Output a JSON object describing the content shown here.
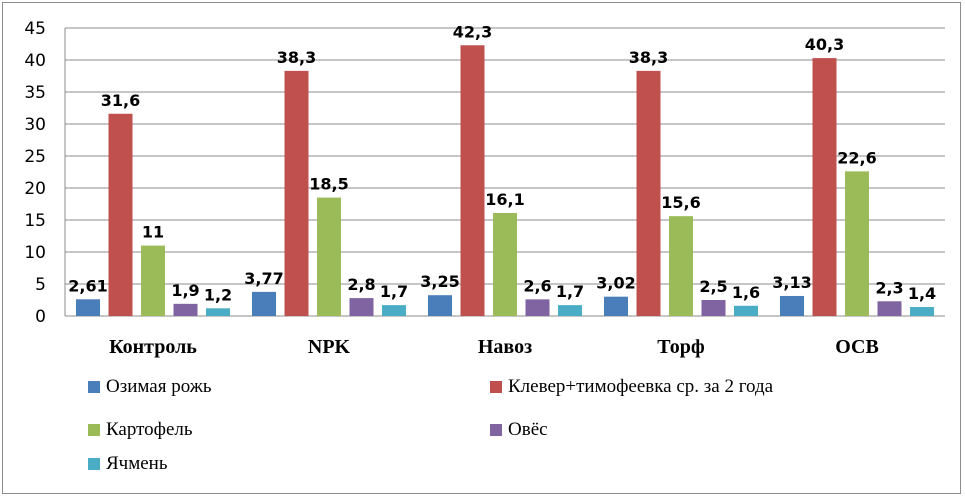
{
  "chart_data": {
    "type": "bar",
    "categories": [
      "Контроль",
      "NPK",
      "Навоз",
      "Торф",
      "ОСВ"
    ],
    "series": [
      {
        "name": "Озимая рожь",
        "color": "#4a7ebb",
        "values": [
          2.61,
          3.77,
          3.25,
          3.02,
          3.13
        ],
        "labels": [
          "2,61",
          "3,77",
          "3,25",
          "3,02",
          "3,13"
        ]
      },
      {
        "name": "Клевер+тимофеевка ср. за 2 года",
        "color": "#c0504d",
        "values": [
          31.6,
          38.3,
          42.3,
          38.3,
          40.3
        ],
        "labels": [
          "31,6",
          "38,3",
          "42,3",
          "38,3",
          "40,3"
        ]
      },
      {
        "name": "Картофель",
        "color": "#9bbb59",
        "values": [
          11,
          18.5,
          16.1,
          15.6,
          22.6
        ],
        "labels": [
          "11",
          "18,5",
          "16,1",
          "15,6",
          "22,6"
        ]
      },
      {
        "name": "Овёс",
        "color": "#8064a2",
        "values": [
          1.9,
          2.8,
          2.6,
          2.5,
          2.3
        ],
        "labels": [
          "1,9",
          "2,8",
          "2,6",
          "2,5",
          "2,3"
        ]
      },
      {
        "name": "Ячмень",
        "color": "#4bacc6",
        "values": [
          1.2,
          1.7,
          1.7,
          1.6,
          1.4
        ],
        "labels": [
          "1,2",
          "1,7",
          "1,7",
          "1,6",
          "1,4"
        ]
      }
    ],
    "ylim": [
      0,
      45
    ],
    "yticks": [
      0,
      5,
      10,
      15,
      20,
      25,
      30,
      35,
      40,
      45
    ],
    "grid": true,
    "legend": "bottom"
  }
}
